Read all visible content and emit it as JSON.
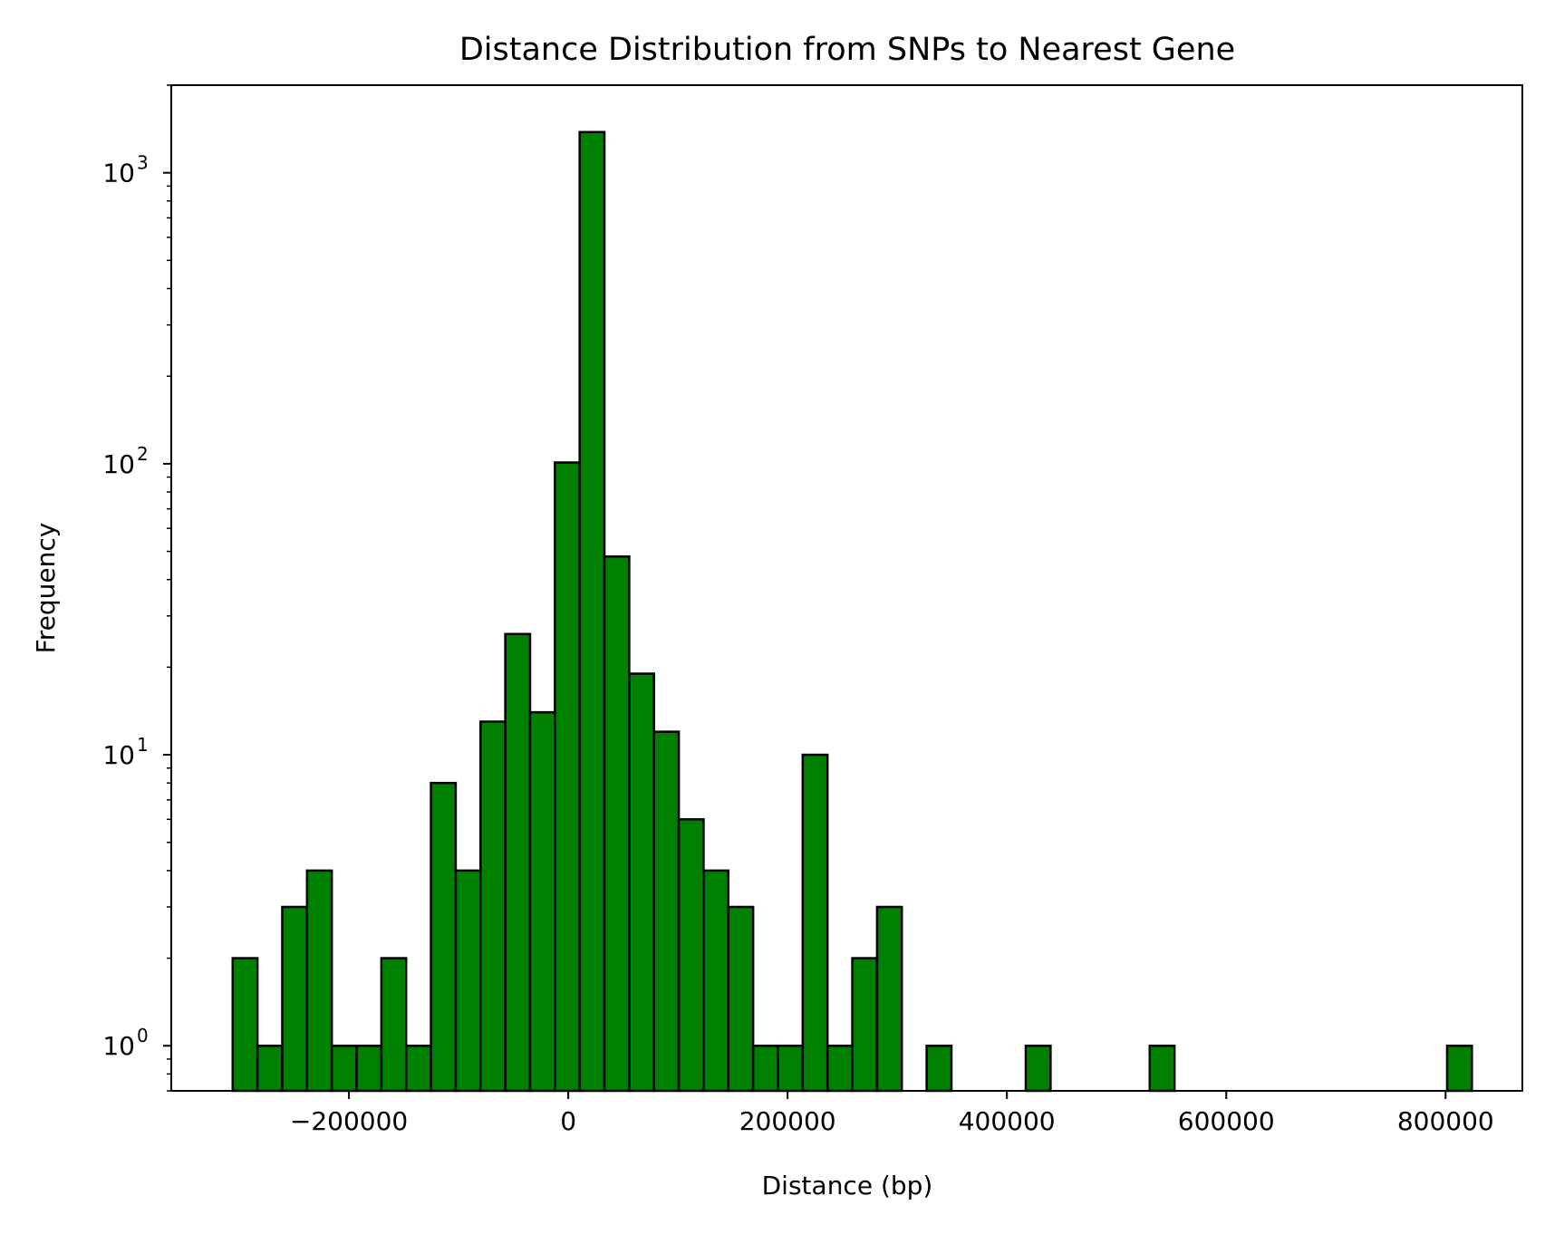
{
  "chart_data": {
    "type": "bar",
    "title": "Distance Distribution from SNPs to Nearest Gene",
    "xlabel": "Distance (bp)",
    "ylabel": "Frequency",
    "yscale": "log",
    "xlim": [
      -362000,
      870000
    ],
    "ylim": [
      0.7,
      2000
    ],
    "grid": false,
    "legend": "none",
    "bar_color": "#008000",
    "edge_color": "#000000",
    "bin_width": 22600,
    "bins": [
      {
        "x0": -306000,
        "count": 2
      },
      {
        "x0": -283400,
        "count": 1
      },
      {
        "x0": -260800,
        "count": 3
      },
      {
        "x0": -238200,
        "count": 4
      },
      {
        "x0": -215600,
        "count": 1
      },
      {
        "x0": -193000,
        "count": 1
      },
      {
        "x0": -170400,
        "count": 2
      },
      {
        "x0": -147800,
        "count": 1
      },
      {
        "x0": -125200,
        "count": 8
      },
      {
        "x0": -102600,
        "count": 4
      },
      {
        "x0": -80000,
        "count": 13
      },
      {
        "x0": -57400,
        "count": 26
      },
      {
        "x0": -34800,
        "count": 14
      },
      {
        "x0": -12200,
        "count": 101
      },
      {
        "x0": 10400,
        "count": 1380
      },
      {
        "x0": 33000,
        "count": 48
      },
      {
        "x0": 55600,
        "count": 19
      },
      {
        "x0": 78200,
        "count": 12
      },
      {
        "x0": 100800,
        "count": 6
      },
      {
        "x0": 123400,
        "count": 4
      },
      {
        "x0": 146000,
        "count": 3
      },
      {
        "x0": 168600,
        "count": 1
      },
      {
        "x0": 191200,
        "count": 1
      },
      {
        "x0": 213800,
        "count": 10
      },
      {
        "x0": 236400,
        "count": 1
      },
      {
        "x0": 259000,
        "count": 2
      },
      {
        "x0": 281600,
        "count": 3
      },
      {
        "x0": 304200,
        "count": 0
      },
      {
        "x0": 326800,
        "count": 1
      },
      {
        "x0": 349400,
        "count": 0
      },
      {
        "x0": 372000,
        "count": 0
      },
      {
        "x0": 394600,
        "count": 0
      },
      {
        "x0": 417200,
        "count": 1
      },
      {
        "x0": 439800,
        "count": 0
      },
      {
        "x0": 462400,
        "count": 0
      },
      {
        "x0": 485000,
        "count": 0
      },
      {
        "x0": 507600,
        "count": 0
      },
      {
        "x0": 530200,
        "count": 1
      },
      {
        "x0": 552800,
        "count": 0
      },
      {
        "x0": 575400,
        "count": 0
      },
      {
        "x0": 598000,
        "count": 0
      },
      {
        "x0": 620600,
        "count": 0
      },
      {
        "x0": 643200,
        "count": 0
      },
      {
        "x0": 665800,
        "count": 0
      },
      {
        "x0": 688400,
        "count": 0
      },
      {
        "x0": 711000,
        "count": 0
      },
      {
        "x0": 733600,
        "count": 0
      },
      {
        "x0": 756200,
        "count": 0
      },
      {
        "x0": 778800,
        "count": 0
      },
      {
        "x0": 801400,
        "count": 1
      }
    ],
    "xticks": [
      {
        "value": -200000,
        "label": "−200000"
      },
      {
        "value": 0,
        "label": "0"
      },
      {
        "value": 200000,
        "label": "200000"
      },
      {
        "value": 400000,
        "label": "400000"
      },
      {
        "value": 600000,
        "label": "600000"
      },
      {
        "value": 800000,
        "label": "800000"
      }
    ],
    "yticks": [
      {
        "value": 1,
        "base": "10",
        "exp": "0"
      },
      {
        "value": 10,
        "base": "10",
        "exp": "1"
      },
      {
        "value": 100,
        "base": "10",
        "exp": "2"
      },
      {
        "value": 1000,
        "base": "10",
        "exp": "3"
      }
    ]
  }
}
